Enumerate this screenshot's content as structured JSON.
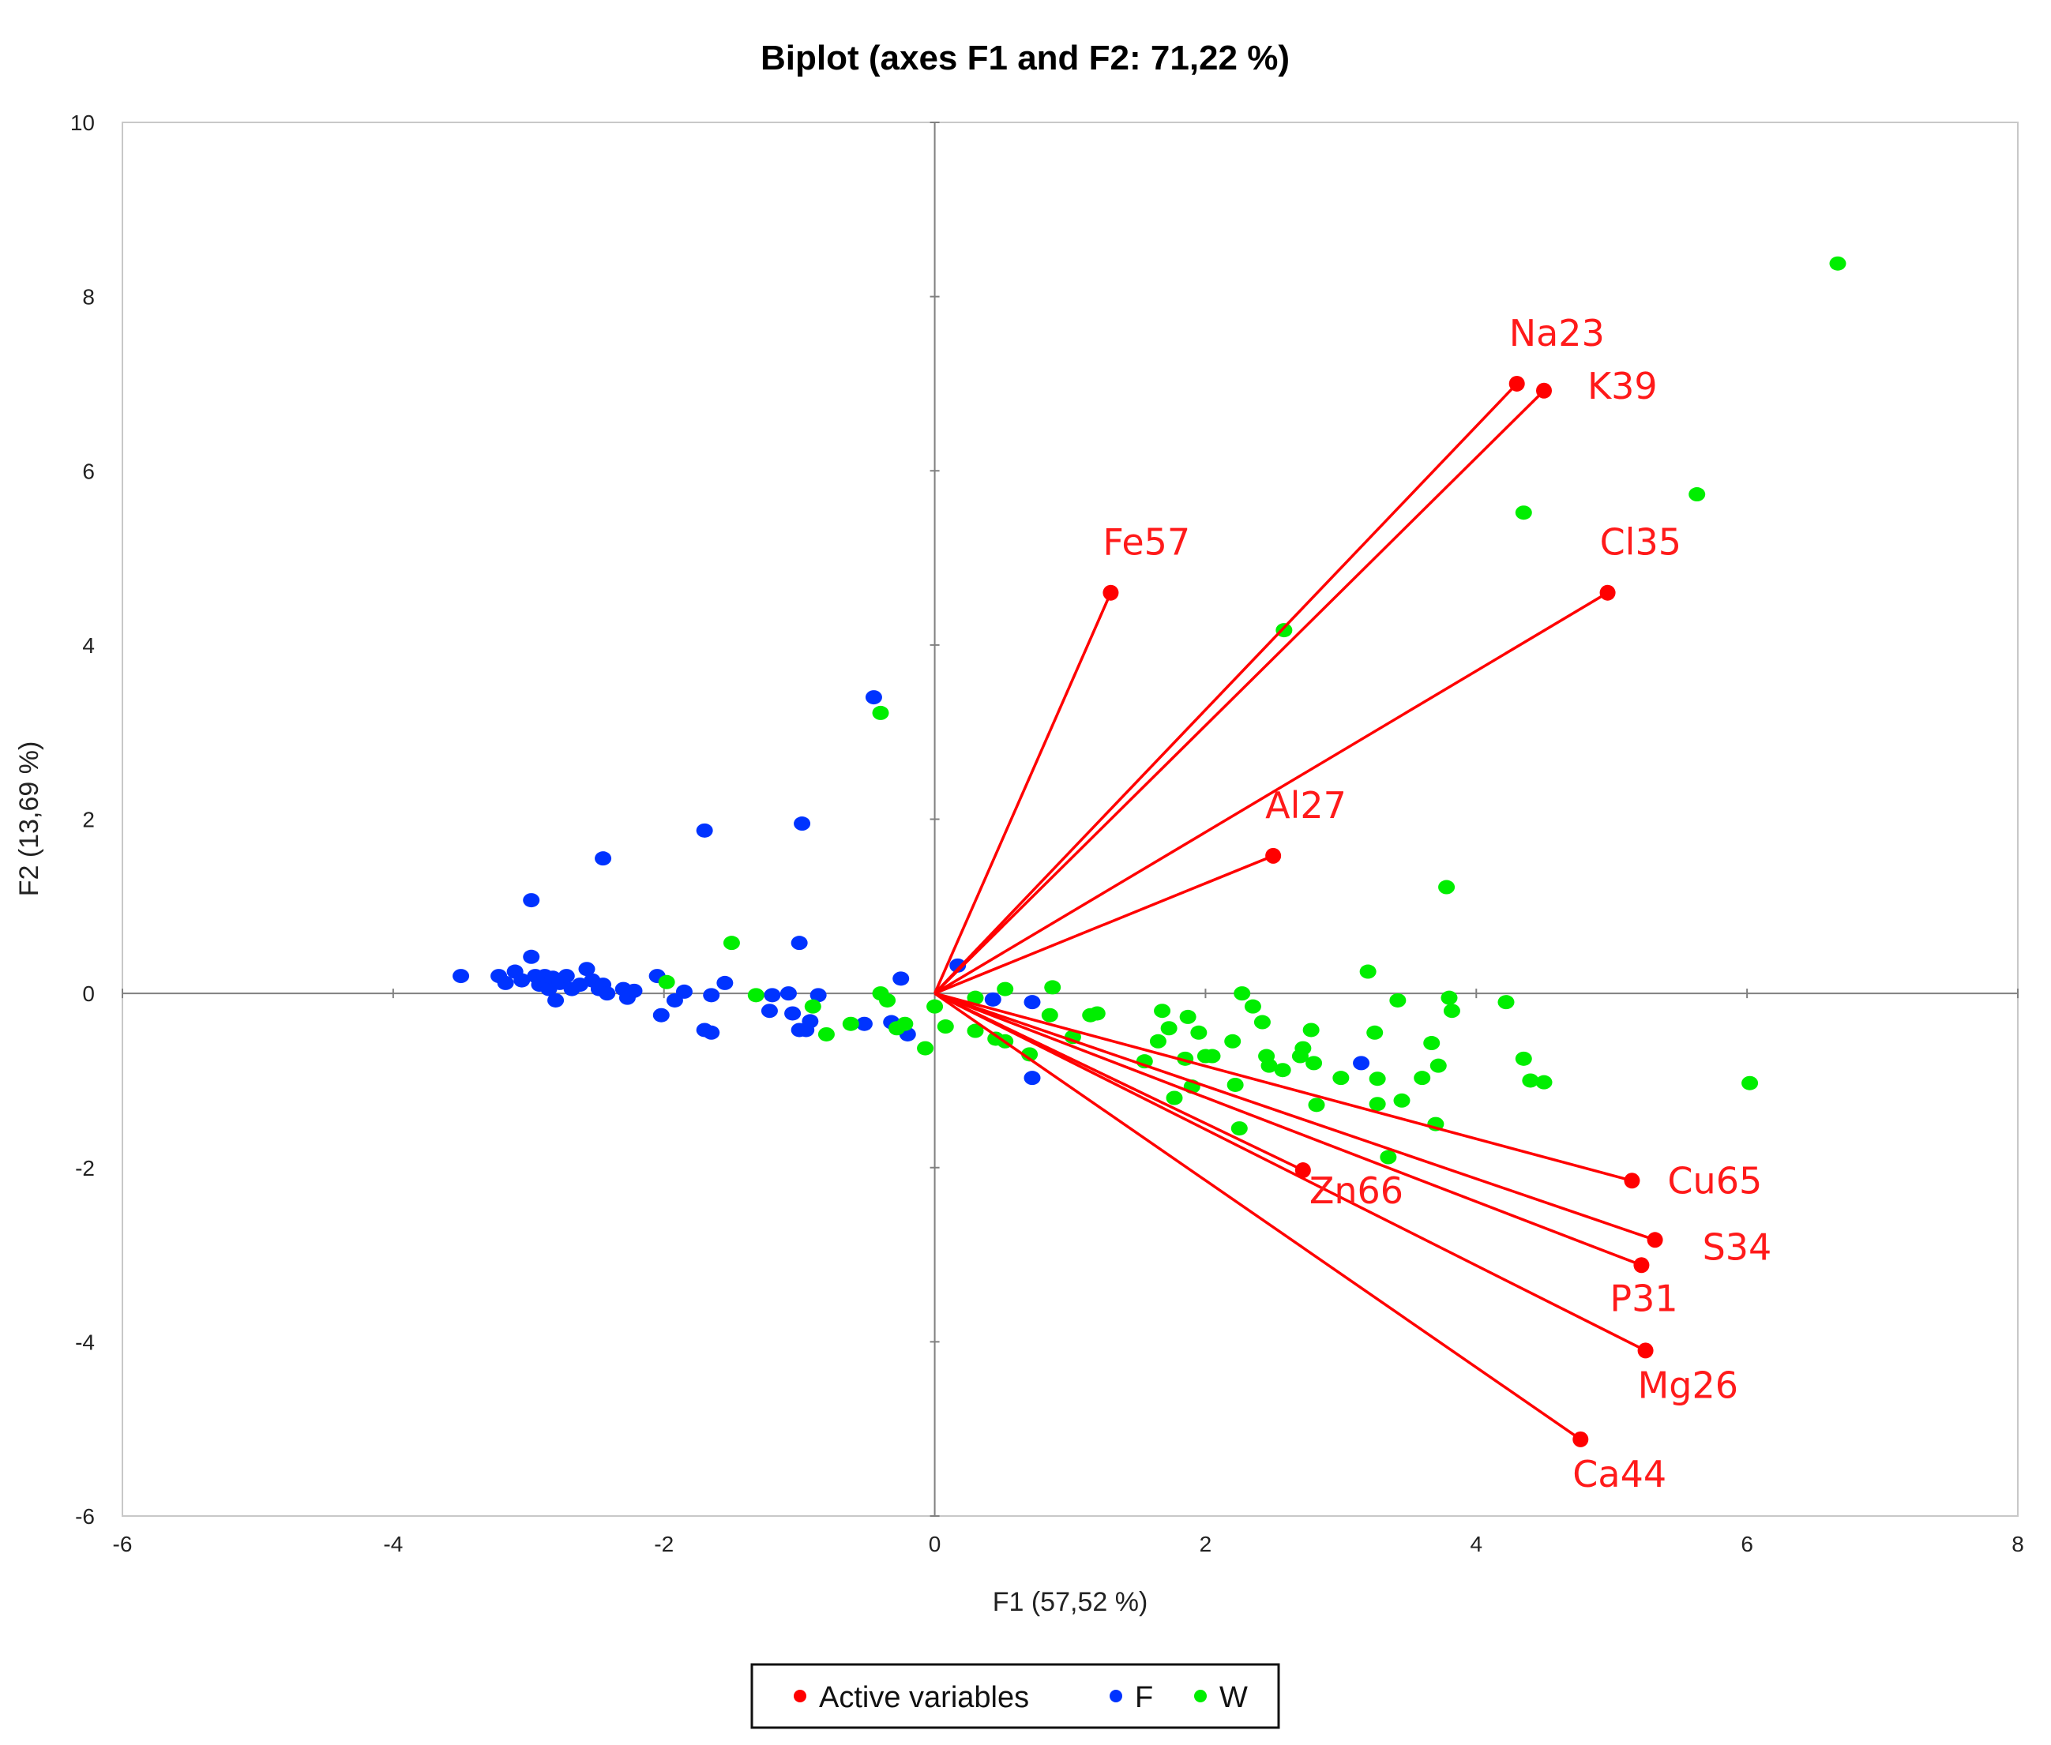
{
  "chart_data": {
    "type": "scatter",
    "title": "Biplot (axes F1 and F2: 71,22 %)",
    "xlabel": "F1 (57,52 %)",
    "ylabel": "F2 (13,69 %)",
    "xlim": [
      -6,
      8
    ],
    "ylim": [
      -6,
      10
    ],
    "xticks": [
      -6,
      -4,
      -2,
      0,
      2,
      4,
      6,
      8
    ],
    "yticks": [
      -6,
      -4,
      -2,
      0,
      2,
      4,
      6,
      8,
      10
    ],
    "legend": {
      "placement": "bottom",
      "entries": [
        {
          "name": "Active variables",
          "color": "#ff0000"
        },
        {
          "name": "F",
          "color": "#0033ff"
        },
        {
          "name": "W",
          "color": "#00ee00"
        }
      ]
    },
    "colors": {
      "variables": "#ff0000",
      "F": "#0033ff",
      "W": "#00ee00",
      "axis": "#808080",
      "frame": "#c8c8c8"
    },
    "active_variables": [
      {
        "name": "Na23",
        "x": 4.3,
        "y": 7.0
      },
      {
        "name": "K39",
        "x": 4.5,
        "y": 6.92
      },
      {
        "name": "Fe57",
        "x": 1.3,
        "y": 4.6
      },
      {
        "name": "Cl35",
        "x": 4.97,
        "y": 4.6
      },
      {
        "name": "Al27",
        "x": 2.5,
        "y": 1.58
      },
      {
        "name": "Zn66",
        "x": 2.72,
        "y": -2.03
      },
      {
        "name": "Cu65",
        "x": 5.15,
        "y": -2.15
      },
      {
        "name": "S34",
        "x": 5.32,
        "y": -2.83
      },
      {
        "name": "P31",
        "x": 5.22,
        "y": -3.12
      },
      {
        "name": "Mg26",
        "x": 5.25,
        "y": -4.1
      },
      {
        "name": "Ca44",
        "x": 4.77,
        "y": -5.12
      }
    ],
    "series": [
      {
        "name": "F",
        "points": [
          [
            -3.5,
            0.2
          ],
          [
            -3.22,
            0.2
          ],
          [
            -3.17,
            0.12
          ],
          [
            -3.1,
            0.25
          ],
          [
            -3.05,
            0.15
          ],
          [
            -2.98,
            0.42
          ],
          [
            -2.95,
            0.2
          ],
          [
            -2.92,
            0.1
          ],
          [
            -2.88,
            0.2
          ],
          [
            -2.85,
            0.05
          ],
          [
            -2.82,
            0.18
          ],
          [
            -2.8,
            -0.08
          ],
          [
            -2.77,
            0.12
          ],
          [
            -2.72,
            0.2
          ],
          [
            -2.68,
            0.05
          ],
          [
            -2.62,
            0.1
          ],
          [
            -2.57,
            0.28
          ],
          [
            -2.53,
            0.15
          ],
          [
            -2.48,
            0.05
          ],
          [
            -2.45,
            0.1
          ],
          [
            -2.42,
            0.0
          ],
          [
            -2.3,
            0.05
          ],
          [
            -2.27,
            -0.05
          ],
          [
            -2.22,
            0.03
          ],
          [
            -2.05,
            0.2
          ],
          [
            -2.02,
            -0.25
          ],
          [
            -1.92,
            -0.08
          ],
          [
            -1.85,
            0.02
          ],
          [
            -1.7,
            -0.42
          ],
          [
            -1.65,
            -0.45
          ],
          [
            -1.65,
            -0.02
          ],
          [
            -1.55,
            0.12
          ],
          [
            -1.7,
            1.87
          ],
          [
            -2.45,
            1.55
          ],
          [
            -2.98,
            1.07
          ],
          [
            -1.2,
            -0.02
          ],
          [
            -1.22,
            -0.2
          ],
          [
            -1.08,
            0.0
          ],
          [
            -1.05,
            -0.23
          ],
          [
            -1.0,
            -0.42
          ],
          [
            -0.95,
            -0.42
          ],
          [
            -0.92,
            -0.32
          ],
          [
            -0.86,
            -0.02
          ],
          [
            -1.0,
            0.58
          ],
          [
            -0.98,
            1.95
          ],
          [
            -0.45,
            3.4
          ],
          [
            -0.52,
            -0.35
          ],
          [
            -0.32,
            -0.33
          ],
          [
            -0.25,
            0.17
          ],
          [
            -0.2,
            -0.47
          ],
          [
            0.17,
            0.32
          ],
          [
            0.43,
            -0.07
          ],
          [
            0.72,
            -0.1
          ],
          [
            0.72,
            -0.97
          ],
          [
            3.15,
            -0.8
          ]
        ]
      },
      {
        "name": "W",
        "points": [
          [
            6.67,
            8.38
          ],
          [
            5.63,
            5.73
          ],
          [
            4.35,
            5.52
          ],
          [
            2.58,
            4.17
          ],
          [
            -0.4,
            3.22
          ],
          [
            3.78,
            1.22
          ],
          [
            -1.5,
            0.58
          ],
          [
            -1.98,
            0.13
          ],
          [
            -1.32,
            -0.02
          ],
          [
            -0.9,
            -0.15
          ],
          [
            -0.8,
            -0.47
          ],
          [
            -0.62,
            -0.35
          ],
          [
            -0.4,
            0.0
          ],
          [
            -0.35,
            -0.08
          ],
          [
            -0.28,
            -0.4
          ],
          [
            -0.22,
            -0.35
          ],
          [
            -0.07,
            -0.63
          ],
          [
            0.0,
            -0.15
          ],
          [
            0.08,
            -0.38
          ],
          [
            0.3,
            -0.43
          ],
          [
            0.3,
            -0.05
          ],
          [
            0.45,
            -0.52
          ],
          [
            0.52,
            0.05
          ],
          [
            0.52,
            -0.55
          ],
          [
            0.7,
            -0.7
          ],
          [
            0.85,
            -0.25
          ],
          [
            0.87,
            0.07
          ],
          [
            1.02,
            -0.5
          ],
          [
            1.15,
            -0.25
          ],
          [
            1.2,
            -0.23
          ],
          [
            1.55,
            -0.78
          ],
          [
            1.65,
            -0.55
          ],
          [
            1.68,
            -0.2
          ],
          [
            1.73,
            -0.4
          ],
          [
            1.77,
            -1.2
          ],
          [
            1.85,
            -0.75
          ],
          [
            1.87,
            -0.27
          ],
          [
            1.9,
            -1.07
          ],
          [
            1.95,
            -0.45
          ],
          [
            2.0,
            -0.72
          ],
          [
            2.05,
            -0.72
          ],
          [
            2.2,
            -0.55
          ],
          [
            2.22,
            -1.05
          ],
          [
            2.25,
            -1.55
          ],
          [
            2.27,
            0.0
          ],
          [
            2.35,
            -0.15
          ],
          [
            2.42,
            -0.33
          ],
          [
            2.45,
            -0.72
          ],
          [
            2.47,
            -0.83
          ],
          [
            2.57,
            -0.88
          ],
          [
            2.7,
            -0.72
          ],
          [
            2.72,
            -0.63
          ],
          [
            2.78,
            -0.42
          ],
          [
            2.8,
            -0.8
          ],
          [
            2.82,
            -1.28
          ],
          [
            3.0,
            -0.97
          ],
          [
            3.2,
            0.25
          ],
          [
            3.25,
            -0.45
          ],
          [
            3.27,
            -0.98
          ],
          [
            3.27,
            -1.27
          ],
          [
            3.35,
            -1.88
          ],
          [
            3.42,
            -0.08
          ],
          [
            3.45,
            -1.23
          ],
          [
            3.6,
            -0.97
          ],
          [
            3.67,
            -0.57
          ],
          [
            3.7,
            -1.5
          ],
          [
            3.72,
            -0.83
          ],
          [
            3.8,
            -0.05
          ],
          [
            3.82,
            -0.2
          ],
          [
            4.22,
            -0.1
          ],
          [
            4.35,
            -0.75
          ],
          [
            4.4,
            -1.0
          ],
          [
            4.5,
            -1.02
          ],
          [
            6.02,
            -1.03
          ]
        ]
      }
    ]
  }
}
